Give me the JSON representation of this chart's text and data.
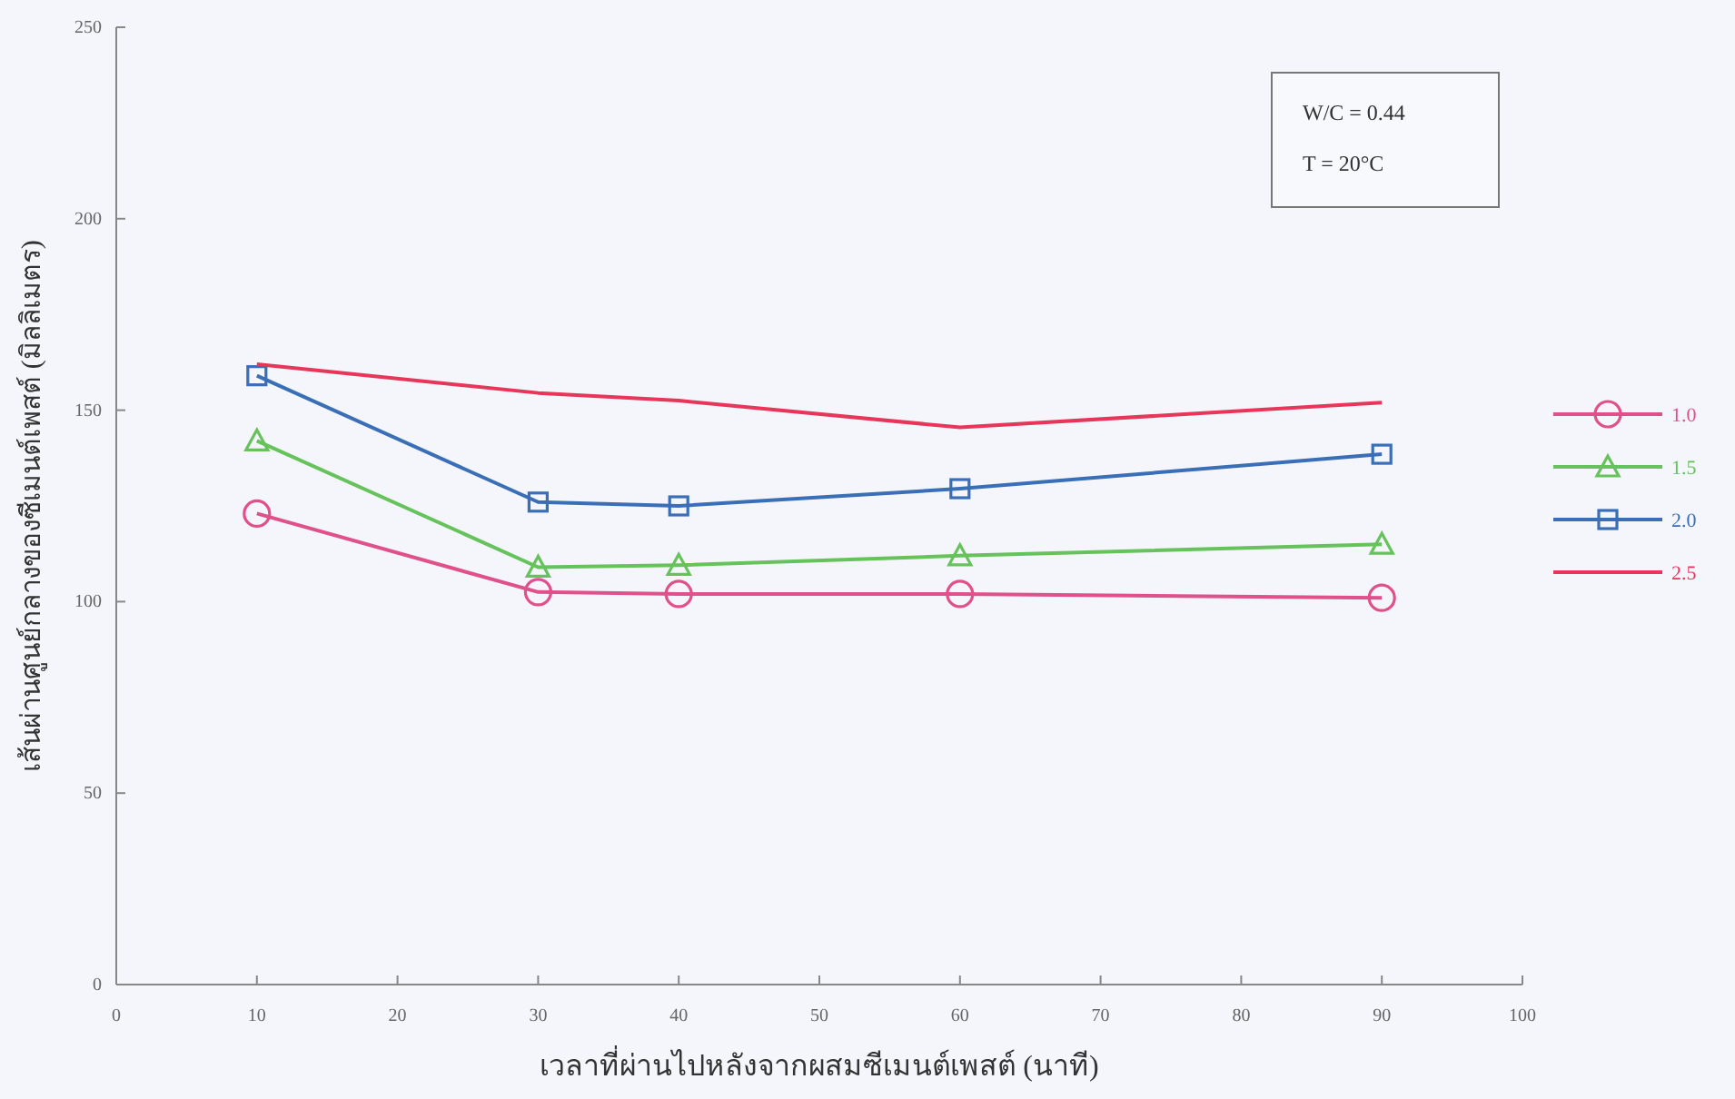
{
  "chart_data": {
    "type": "line",
    "xlabel": "เวลาที่ผ่านไปหลังจากผสมซีเมนต์เพสต์ (นาที)",
    "ylabel": "เส้นผ่านศูนย์กลางของซีเมนต์เพสต์ (มิลลิเมตร)",
    "annotations": [
      "W/C = 0.44",
      "T = 20°C"
    ],
    "x": [
      10,
      30,
      40,
      60,
      90
    ],
    "series": [
      {
        "name": "1.0",
        "color": "#e0508a",
        "marker": "circle",
        "values": [
          123,
          102.5,
          102,
          102,
          101
        ]
      },
      {
        "name": "1.5",
        "color": "#66c25a",
        "marker": "triangle",
        "values": [
          142,
          109,
          109.5,
          112,
          115
        ]
      },
      {
        "name": "2.0",
        "color": "#3a6fb8",
        "marker": "square",
        "values": [
          159,
          126,
          125,
          129.5,
          138.5
        ]
      },
      {
        "name": "2.5",
        "color": "#e8365a",
        "marker": "none",
        "values": [
          162,
          154.5,
          152.5,
          145.5,
          152
        ]
      }
    ],
    "xlim": [
      0,
      100
    ],
    "ylim": [
      0,
      250
    ],
    "xticks": [
      0,
      10,
      20,
      30,
      40,
      50,
      60,
      70,
      80,
      90,
      100
    ],
    "yticks": [
      0,
      50,
      100,
      150,
      200,
      250
    ],
    "grid": false,
    "legend": "right",
    "line_style": "solid"
  }
}
